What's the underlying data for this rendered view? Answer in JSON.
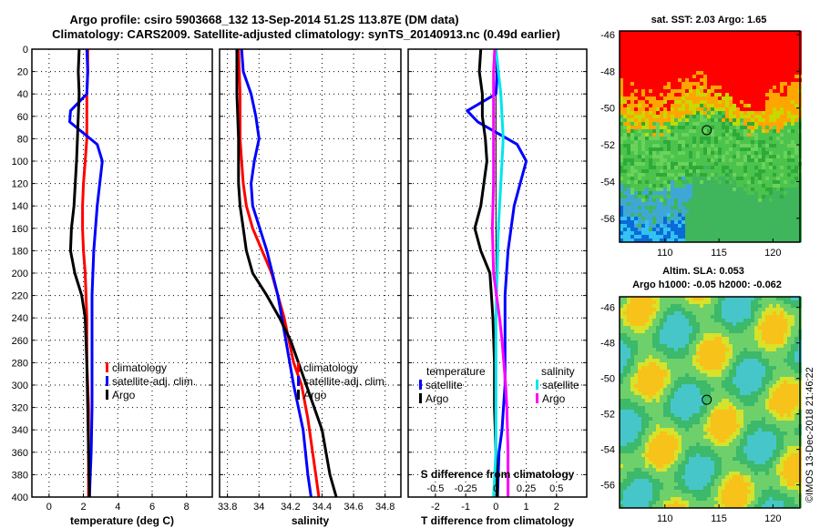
{
  "header": {
    "title_line1": "Argo profile: csiro 5903668_132 13-Sep-2014 51.2S 113.87E (DM data)",
    "title_line2": "Climatology: CARS2009. Satellite-adjusted climatology: synTS_20140913.nc (0.49d earlier)"
  },
  "watermark": "©IMOS 13-Dec-2018 21:46:22",
  "depth_ticks": [
    "0",
    "20",
    "40",
    "60",
    "80",
    "100",
    "120",
    "140",
    "160",
    "180",
    "200",
    "220",
    "240",
    "260",
    "280",
    "300",
    "320",
    "340",
    "360",
    "380",
    "400"
  ],
  "colors": {
    "climatology": "#ff0000",
    "satellite": "#0000ff",
    "argo": "#000000",
    "sat_salinity": "#00e5ee",
    "argo_salinity": "#ff00ff"
  },
  "chart_data": [
    {
      "type": "line",
      "name": "temperature",
      "xlabel": "temperature (deg C)",
      "xlim": [
        -1,
        9.5
      ],
      "ylim": [
        0,
        400
      ],
      "xticks": [
        "0",
        "2",
        "4",
        "6",
        "8"
      ],
      "legend": {
        "position": "lower-right",
        "entries": [
          "climatology",
          "satellite-adj. clim.",
          "Argo"
        ]
      },
      "series": [
        {
          "name": "climatology",
          "color": "#ff0000",
          "x": [
            2.25,
            2.25,
            2.2,
            2.2,
            2.2,
            2.1,
            2.0,
            1.95,
            1.95,
            2.0,
            2.1,
            2.2,
            2.2,
            2.25,
            2.3,
            2.3,
            2.3
          ],
          "y": [
            0,
            20,
            40,
            60,
            80,
            100,
            120,
            140,
            160,
            180,
            200,
            240,
            280,
            300,
            320,
            360,
            400
          ]
        },
        {
          "name": "satellite-adj. clim.",
          "color": "#0000ff",
          "x": [
            2.2,
            2.25,
            2.2,
            1.25,
            1.2,
            2.8,
            3.1,
            2.95,
            2.8,
            2.6,
            2.5,
            2.5,
            2.5,
            2.5,
            2.45,
            2.4,
            2.35
          ],
          "y": [
            0,
            20,
            40,
            55,
            65,
            85,
            100,
            120,
            140,
            180,
            220,
            260,
            300,
            320,
            360,
            380,
            400
          ]
        },
        {
          "name": "Argo",
          "color": "#000000",
          "x": [
            1.75,
            1.7,
            1.75,
            1.7,
            1.65,
            1.6,
            1.45,
            1.3,
            1.25,
            1.5,
            1.9,
            2.1,
            2.2,
            2.25,
            2.3,
            2.35
          ],
          "y": [
            0,
            20,
            40,
            60,
            80,
            100,
            140,
            160,
            180,
            200,
            220,
            240,
            280,
            320,
            360,
            400
          ]
        }
      ]
    },
    {
      "type": "line",
      "name": "salinity",
      "xlabel": "salinity",
      "xlim": [
        33.75,
        34.9
      ],
      "ylim": [
        0,
        400
      ],
      "xticks": [
        "33.8",
        "34",
        "34.2",
        "34.4",
        "34.6",
        "34.8"
      ],
      "legend": {
        "position": "lower-right",
        "entries": [
          "climatology",
          "satellite-adj. clim.",
          "Argo"
        ]
      },
      "series": [
        {
          "name": "climatology",
          "color": "#ff0000",
          "x": [
            33.87,
            33.88,
            33.88,
            33.89,
            33.9,
            33.92,
            33.96,
            34.02,
            34.08,
            34.16,
            34.22,
            34.27,
            34.31,
            34.34,
            34.36,
            34.38
          ],
          "y": [
            0,
            40,
            80,
            100,
            120,
            140,
            160,
            180,
            200,
            240,
            280,
            300,
            330,
            360,
            380,
            400
          ]
        },
        {
          "name": "satellite-adj. clim.",
          "color": "#0000ff",
          "x": [
            33.89,
            33.9,
            33.95,
            33.98,
            34.0,
            33.97,
            33.95,
            33.96,
            34.05,
            34.12,
            34.17,
            34.22,
            34.28,
            34.31,
            34.33
          ],
          "y": [
            0,
            20,
            40,
            60,
            80,
            100,
            120,
            140,
            180,
            220,
            260,
            300,
            340,
            380,
            400
          ]
        },
        {
          "name": "Argo",
          "color": "#000000",
          "x": [
            33.86,
            33.86,
            33.87,
            33.87,
            33.88,
            33.9,
            33.92,
            33.96,
            34.05,
            34.13,
            34.2,
            34.3,
            34.4,
            34.45,
            34.49
          ],
          "y": [
            0,
            40,
            80,
            120,
            140,
            160,
            180,
            200,
            220,
            240,
            260,
            300,
            340,
            380,
            400
          ]
        }
      ]
    },
    {
      "type": "line",
      "name": "difference",
      "xlabel": "T difference from climatology",
      "x2label": "S difference from climatology",
      "xlim": [
        -2.9,
        3.0
      ],
      "x2lim": [
        -0.725,
        0.75
      ],
      "ylim": [
        0,
        400
      ],
      "xticks": [
        "-2",
        "-1",
        "0",
        "1",
        "2"
      ],
      "x2ticks": [
        "-0.5",
        "-0.25",
        "0",
        "0.25",
        "0.5"
      ],
      "legend": {
        "position": "lower",
        "temperature_title": "temperature",
        "salinity_title": "salinity",
        "entries": [
          "satellite",
          "Argo",
          "satellite",
          "Argo"
        ]
      },
      "series": [
        {
          "name": "temperature satellite",
          "color": "#0000ff",
          "x": [
            0,
            0.05,
            0,
            -0.95,
            -0.6,
            0.7,
            1.0,
            0.8,
            0.6,
            0.4,
            0.3,
            0.3,
            0.3,
            0.25,
            0.2,
            0.1,
            0.05
          ],
          "y": [
            0,
            20,
            40,
            55,
            65,
            85,
            100,
            120,
            140,
            180,
            220,
            260,
            300,
            320,
            340,
            360,
            400
          ]
        },
        {
          "name": "temperature Argo",
          "color": "#000000",
          "x": [
            -0.5,
            -0.55,
            -0.45,
            -0.45,
            -0.35,
            -0.3,
            -0.5,
            -0.7,
            -0.5,
            -0.2,
            -0.15,
            -0.1,
            -0.05,
            -0.05,
            0.0,
            0.05
          ],
          "y": [
            0,
            20,
            40,
            60,
            80,
            100,
            140,
            160,
            180,
            200,
            220,
            240,
            280,
            320,
            360,
            400
          ]
        },
        {
          "name": "salinity satellite",
          "color": "#00e5ee",
          "x": [
            0.0,
            0.02,
            0.04,
            0.05,
            0.06,
            0.05,
            0.04,
            0.02,
            0.01,
            0.0,
            0.0,
            0.0,
            0.0,
            0.0,
            -0.01,
            -0.02
          ],
          "y": [
            0,
            20,
            40,
            60,
            80,
            100,
            120,
            160,
            200,
            240,
            280,
            300,
            340,
            360,
            380,
            400
          ]
        },
        {
          "name": "salinity Argo",
          "color": "#ff00ff",
          "x": [
            -0.01,
            -0.02,
            -0.02,
            -0.02,
            -0.02,
            -0.03,
            -0.02,
            0.03,
            0.05,
            0.08,
            0.09,
            0.1,
            0.1,
            0.1
          ],
          "y": [
            0,
            20,
            40,
            80,
            120,
            160,
            200,
            240,
            260,
            300,
            320,
            360,
            380,
            400
          ]
        }
      ]
    },
    {
      "type": "heatmap",
      "name": "sst-map",
      "title": "sat. SST: 2.03 Argo: 1.65",
      "xticks": [
        "110",
        "115",
        "120"
      ],
      "yticks": [
        "-46",
        "-48",
        "-50",
        "-52",
        "-54",
        "-56"
      ],
      "xlim": [
        105.8,
        122.5
      ],
      "ylim": [
        -57.3,
        -45.8
      ],
      "argo_position": {
        "lon": 113.87,
        "lat": -51.2
      }
    },
    {
      "type": "heatmap",
      "name": "sla-map",
      "title_line1": "Altim. SLA: 0.053",
      "title_line2": "Argo h1000: -0.05 h2000: -0.062",
      "xticks": [
        "110",
        "115",
        "120"
      ],
      "yticks": [
        "-46",
        "-48",
        "-50",
        "-52",
        "-54",
        "-56"
      ],
      "xlim": [
        105.8,
        122.5
      ],
      "ylim": [
        -57.3,
        -45.4
      ],
      "argo_position": {
        "lon": 113.87,
        "lat": -51.2
      }
    }
  ]
}
